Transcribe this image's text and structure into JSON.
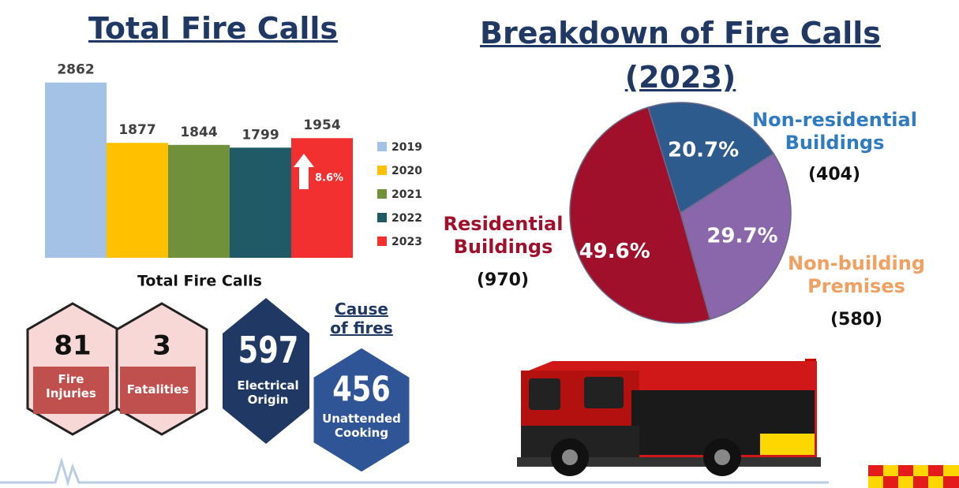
{
  "chart_data": [
    {
      "type": "bar",
      "title": "Total Fire Calls",
      "x_label": "Total Fire Calls",
      "categories": [
        "2019",
        "2020",
        "2021",
        "2022",
        "2023"
      ],
      "values": [
        2862,
        1877,
        1844,
        1799,
        1954
      ],
      "colors": [
        "#a4c2e6",
        "#ffc000",
        "#70913a",
        "#1f5a66",
        "#f23030"
      ],
      "ylim": [
        0,
        3000
      ],
      "legend": "right",
      "annotation": "8.6%"
    },
    {
      "type": "pie",
      "title": "Breakdown of Fire Calls (2023)",
      "categories": [
        "Non-residential Buildings",
        "Non-building Premises",
        "Residential Buildings"
      ],
      "values": [
        20.7,
        29.7,
        49.6
      ],
      "value_labels": [
        "20.7%",
        "29.7%",
        "49.6%"
      ],
      "counts": [
        404,
        580,
        970
      ],
      "count_labels": [
        "(404)",
        "(580)",
        "(970)"
      ],
      "colors": [
        "#2e5b8e",
        "#8a67aa",
        "#a0102a"
      ],
      "label_colors": [
        "#2e7bbf",
        "#f0a060",
        "#a0102a"
      ]
    }
  ],
  "stats": {
    "injuries": {
      "value": "81",
      "label": "Fire Injuries"
    },
    "fatalities": {
      "value": "3",
      "label": "Fatalities"
    },
    "cause_heading": "Cause of fires",
    "electrical": {
      "value": "597",
      "label": "Electrical Origin"
    },
    "cooking": {
      "value": "456",
      "label": "Unattended Cooking"
    }
  }
}
